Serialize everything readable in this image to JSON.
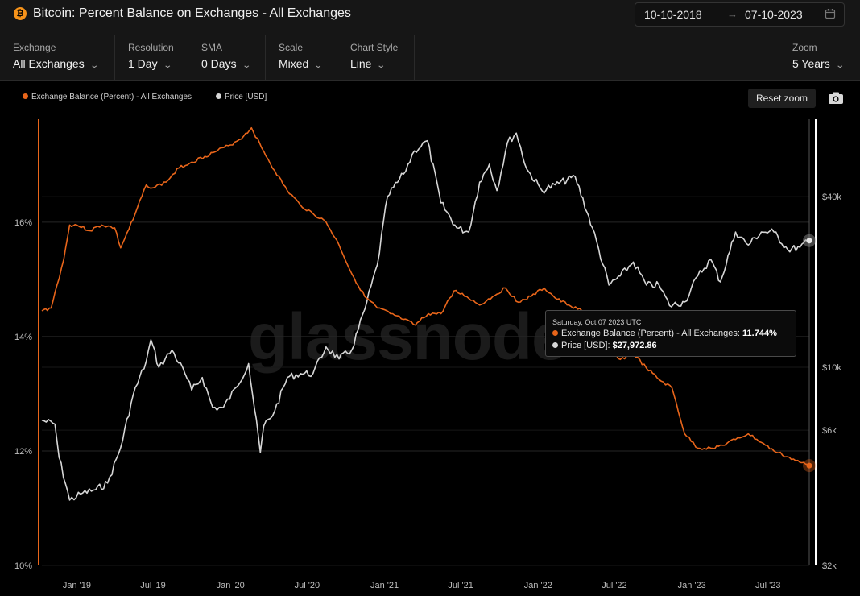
{
  "header": {
    "icon_glyph": "₿",
    "title": "Bitcoin: Percent Balance on Exchanges - All Exchanges",
    "date_from": "10-10-2018",
    "date_arrow": "→",
    "date_to": "07-10-2023"
  },
  "controls": [
    {
      "label": "Exchange",
      "value": "All Exchanges"
    },
    {
      "label": "Resolution",
      "value": "1 Day"
    },
    {
      "label": "SMA",
      "value": "0 Days"
    },
    {
      "label": "Scale",
      "value": "Mixed"
    },
    {
      "label": "Chart Style",
      "value": "Line"
    }
  ],
  "zoom": {
    "label": "Zoom",
    "value": "5 Years"
  },
  "chevron": "⌄",
  "toolbar": {
    "reset_zoom": "Reset zoom"
  },
  "watermark": "glassnode",
  "colors": {
    "balance": "#e8651a",
    "price": "#d6d6d6",
    "background": "#000000",
    "panel": "#161616"
  },
  "tooltip": {
    "date": "Saturday, Oct 07 2023 UTC",
    "balance_label": "Exchange Balance (Percent) - All Exchanges:",
    "balance_value": "11.744%",
    "price_label": "Price [USD]:",
    "price_value": "$27,972.86"
  },
  "chart_data": {
    "type": "line",
    "legend": [
      "Exchange Balance (Percent) - All Exchanges",
      "Price [USD]"
    ],
    "x_ticks": [
      "Jan '19",
      "Jul '19",
      "Jan '20",
      "Jul '20",
      "Jan '21",
      "Jul '21",
      "Jan '22",
      "Jul '22",
      "Jan '23",
      "Jul '23"
    ],
    "left_axis": {
      "ticks": [
        "16%",
        "14%",
        "12%",
        "10%"
      ],
      "range": [
        10,
        17.8
      ]
    },
    "right_axis": {
      "ticks": [
        "$40k",
        "$10k",
        "$6k",
        "$2k"
      ],
      "scale": "log",
      "range": [
        2000,
        75000
      ]
    },
    "series": [
      {
        "name": "Exchange Balance (Percent) - All Exchanges",
        "axis": "left",
        "x": [
          "2018-10-10",
          "2018-11-01",
          "2018-11-15",
          "2018-12-01",
          "2018-12-15",
          "2019-01-01",
          "2019-02-01",
          "2019-03-01",
          "2019-04-01",
          "2019-04-15",
          "2019-05-15",
          "2019-06-15",
          "2019-07-01",
          "2019-08-01",
          "2019-09-01",
          "2019-10-01",
          "2019-11-01",
          "2019-12-01",
          "2020-01-01",
          "2020-02-01",
          "2020-02-20",
          "2020-03-15",
          "2020-04-15",
          "2020-05-15",
          "2020-06-15",
          "2020-07-15",
          "2020-08-15",
          "2020-09-15",
          "2020-10-15",
          "2020-11-15",
          "2020-12-15",
          "2021-01-15",
          "2021-02-15",
          "2021-03-15",
          "2021-04-15",
          "2021-05-15",
          "2021-06-15",
          "2021-07-15",
          "2021-08-15",
          "2021-09-15",
          "2021-10-15",
          "2021-11-15",
          "2021-12-15",
          "2022-01-15",
          "2022-02-15",
          "2022-03-15",
          "2022-04-15",
          "2022-05-15",
          "2022-06-15",
          "2022-07-15",
          "2022-08-15",
          "2022-09-15",
          "2022-10-15",
          "2022-11-15",
          "2022-12-15",
          "2023-01-15",
          "2023-02-15",
          "2023-03-15",
          "2023-04-15",
          "2023-05-15",
          "2023-06-15",
          "2023-07-15",
          "2023-08-15",
          "2023-09-15",
          "2023-10-07"
        ],
        "y": [
          14.45,
          14.5,
          14.9,
          15.35,
          15.95,
          15.95,
          15.85,
          15.95,
          15.9,
          15.55,
          16.05,
          16.65,
          16.6,
          16.7,
          16.95,
          17.05,
          17.15,
          17.25,
          17.35,
          17.5,
          17.65,
          17.3,
          16.9,
          16.55,
          16.3,
          16.15,
          16.0,
          15.6,
          15.1,
          14.7,
          14.5,
          14.4,
          14.3,
          14.2,
          14.4,
          14.4,
          14.8,
          14.7,
          14.55,
          14.7,
          14.85,
          14.6,
          14.7,
          14.85,
          14.65,
          14.55,
          14.45,
          14.15,
          13.85,
          13.6,
          13.7,
          13.45,
          13.25,
          13.1,
          12.3,
          12.05,
          12.05,
          12.1,
          12.2,
          12.3,
          12.15,
          12.0,
          11.9,
          11.8,
          11.744
        ]
      },
      {
        "name": "Price [USD]",
        "axis": "right",
        "x": [
          "2018-10-10",
          "2018-11-10",
          "2018-11-20",
          "2018-12-15",
          "2019-01-15",
          "2019-02-15",
          "2019-03-15",
          "2019-04-15",
          "2019-05-15",
          "2019-06-15",
          "2019-06-26",
          "2019-07-15",
          "2019-08-15",
          "2019-09-15",
          "2019-10-01",
          "2019-10-26",
          "2019-11-20",
          "2019-12-15",
          "2020-01-15",
          "2020-02-13",
          "2020-03-12",
          "2020-03-20",
          "2020-04-15",
          "2020-05-15",
          "2020-06-15",
          "2020-07-15",
          "2020-08-15",
          "2020-09-15",
          "2020-10-15",
          "2020-11-15",
          "2020-12-15",
          "2021-01-08",
          "2021-02-15",
          "2021-03-13",
          "2021-04-13",
          "2021-05-15",
          "2021-06-22",
          "2021-07-20",
          "2021-08-15",
          "2021-09-07",
          "2021-09-25",
          "2021-10-20",
          "2021-11-10",
          "2021-12-05",
          "2022-01-10",
          "2022-02-10",
          "2022-03-30",
          "2022-05-10",
          "2022-06-18",
          "2022-07-15",
          "2022-08-15",
          "2022-09-15",
          "2022-10-15",
          "2022-11-09",
          "2022-12-15",
          "2023-01-15",
          "2023-02-15",
          "2023-03-10",
          "2023-04-15",
          "2023-05-15",
          "2023-06-15",
          "2023-07-15",
          "2023-08-17",
          "2023-09-15",
          "2023-10-07"
        ],
        "y": [
          6500,
          6300,
          4800,
          3400,
          3600,
          3700,
          3900,
          5200,
          8000,
          10500,
          12500,
          10000,
          11500,
          9500,
          8300,
          9200,
          7200,
          7200,
          8500,
          10300,
          5000,
          6200,
          7000,
          9200,
          9500,
          9500,
          11800,
          10700,
          11500,
          16000,
          23000,
          40000,
          48000,
          58000,
          63000,
          38000,
          31000,
          30000,
          45000,
          52000,
          42000,
          62000,
          67000,
          50000,
          42000,
          44000,
          47000,
          31000,
          19500,
          21000,
          23500,
          19500,
          19500,
          16500,
          17000,
          21000,
          24000,
          20000,
          30000,
          27000,
          30000,
          30000,
          26000,
          26500,
          27972.86
        ]
      }
    ]
  }
}
